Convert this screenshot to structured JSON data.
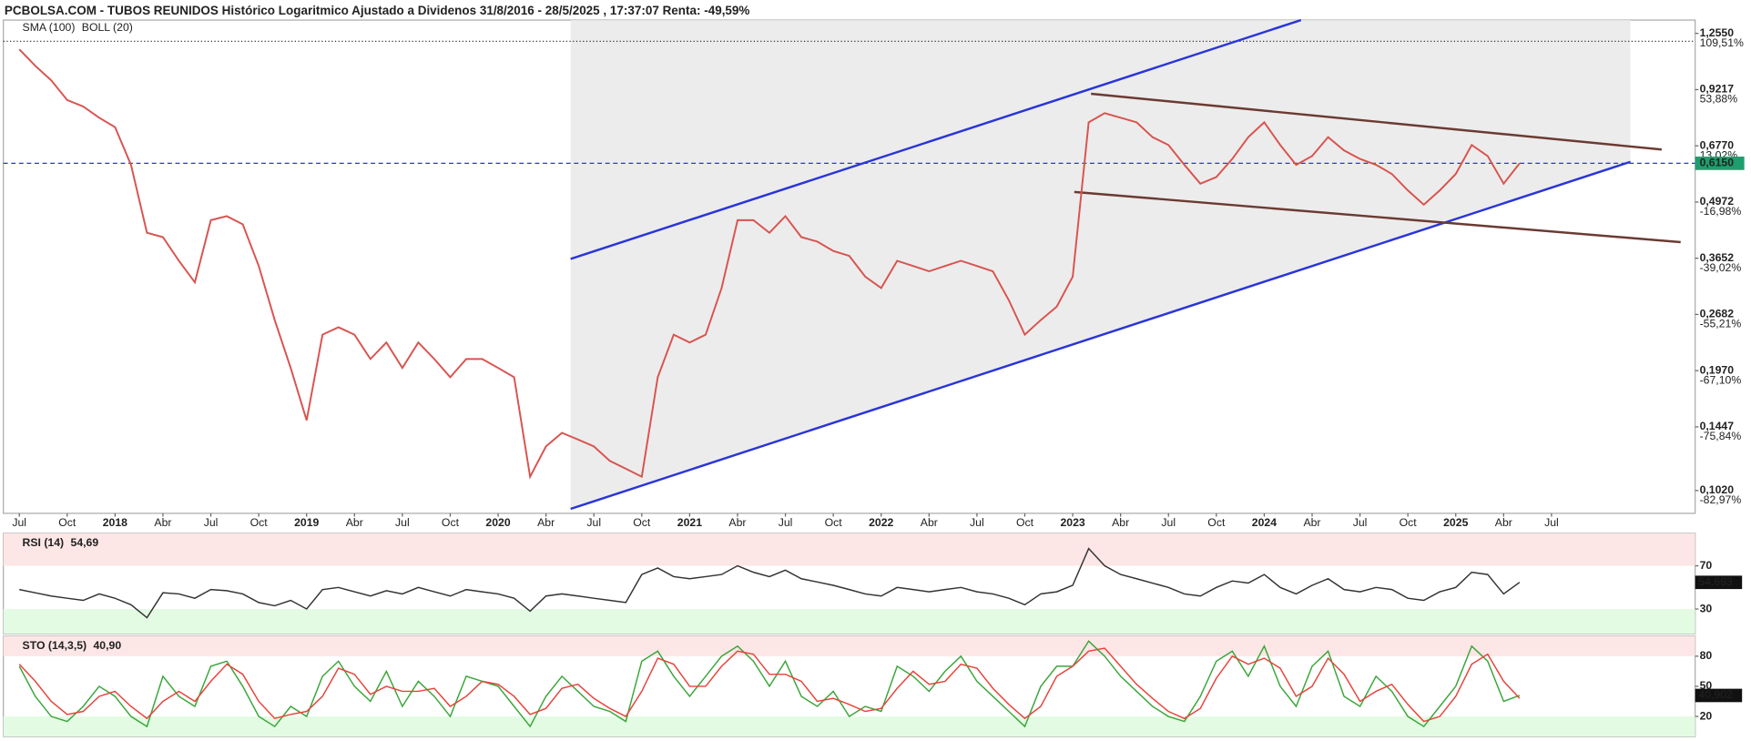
{
  "chart_data": [
    {
      "type": "line",
      "title": "PCBOLSA.COM - TUBOS REUNIDOS Histórico Logaritmico Ajustado a Dividenos 31/8/2016 - 28/5/2025 , 17:37:07 Renta: -49,59%",
      "indicators": [
        {
          "name": "SMA (100)",
          "color": "#9fd0f0"
        },
        {
          "name": "BOLL (20)",
          "color": "#d3e6f3"
        }
      ],
      "log_scale": true,
      "xlim": [
        "2017-06",
        "2026-04"
      ],
      "xticks": [
        {
          "value": "2017-07",
          "label": "Jul"
        },
        {
          "value": "2017-10",
          "label": "Oct"
        },
        {
          "value": "2018-01",
          "label": "2018"
        },
        {
          "value": "2018-04",
          "label": "Abr"
        },
        {
          "value": "2018-07",
          "label": "Jul"
        },
        {
          "value": "2018-10",
          "label": "Oct"
        },
        {
          "value": "2019-01",
          "label": "2019"
        },
        {
          "value": "2019-04",
          "label": "Abr"
        },
        {
          "value": "2019-07",
          "label": "Jul"
        },
        {
          "value": "2019-10",
          "label": "Oct"
        },
        {
          "value": "2020-01",
          "label": "2020"
        },
        {
          "value": "2020-04",
          "label": "Abr"
        },
        {
          "value": "2020-07",
          "label": "Jul"
        },
        {
          "value": "2020-10",
          "label": "Oct"
        },
        {
          "value": "2021-01",
          "label": "2021"
        },
        {
          "value": "2021-04",
          "label": "Abr"
        },
        {
          "value": "2021-07",
          "label": "Jul"
        },
        {
          "value": "2021-10",
          "label": "Oct"
        },
        {
          "value": "2022-01",
          "label": "2022"
        },
        {
          "value": "2022-04",
          "label": "Abr"
        },
        {
          "value": "2022-07",
          "label": "Jul"
        },
        {
          "value": "2022-10",
          "label": "Oct"
        },
        {
          "value": "2023-01",
          "label": "2023"
        },
        {
          "value": "2023-04",
          "label": "Abr"
        },
        {
          "value": "2023-07",
          "label": "Jul"
        },
        {
          "value": "2023-10",
          "label": "Oct"
        },
        {
          "value": "2024-01",
          "label": "2024"
        },
        {
          "value": "2024-04",
          "label": "Abr"
        },
        {
          "value": "2024-07",
          "label": "Jul"
        },
        {
          "value": "2024-10",
          "label": "Oct"
        },
        {
          "value": "2025-01",
          "label": "2025"
        },
        {
          "value": "2025-04",
          "label": "Abr"
        },
        {
          "value": "2025-07",
          "label": "Jul"
        }
      ],
      "ylim": [
        0.09,
        1.35
      ],
      "yticks": [
        {
          "value": 1.255,
          "label": "1,2550"
        },
        {
          "value": 0.9217,
          "label": "0,9217"
        },
        {
          "value": 0.677,
          "label": "0,6770"
        },
        {
          "value": 0.4972,
          "label": "0,4972"
        },
        {
          "value": 0.3652,
          "label": "0,3652"
        },
        {
          "value": 0.2682,
          "label": "0,2682"
        },
        {
          "value": 0.197,
          "label": "0,1970"
        },
        {
          "value": 0.1447,
          "label": "0,1447"
        },
        {
          "value": 0.102,
          "label": "0,1020"
        }
      ],
      "ytick_changes": [
        {
          "value": 109.51,
          "label": "109,51%"
        },
        {
          "value": 53.88,
          "label": "53,88%"
        },
        {
          "value": 13.02,
          "label": "13,02%"
        },
        {
          "value": -16.98,
          "label": "-16,98%"
        },
        {
          "value": -39.02,
          "label": "-39,02%"
        },
        {
          "value": -55.21,
          "label": "-55,21%"
        },
        {
          "value": -67.1,
          "label": "-67,10%"
        },
        {
          "value": -75.84,
          "label": "-75,84%"
        },
        {
          "value": -82.97,
          "label": "-82,97%"
        }
      ],
      "last_price": {
        "value": 0.615,
        "label": "0,6150",
        "color": "#1e9e6e"
      },
      "x": [
        "2017-07",
        "2017-08",
        "2017-09",
        "2017-10",
        "2017-11",
        "2017-12",
        "2018-01",
        "2018-02",
        "2018-03",
        "2018-04",
        "2018-05",
        "2018-06",
        "2018-07",
        "2018-08",
        "2018-09",
        "2018-10",
        "2018-11",
        "2018-12",
        "2019-01",
        "2019-02",
        "2019-03",
        "2019-04",
        "2019-05",
        "2019-06",
        "2019-07",
        "2019-08",
        "2019-09",
        "2019-10",
        "2019-11",
        "2019-12",
        "2020-01",
        "2020-02",
        "2020-03",
        "2020-04",
        "2020-05",
        "2020-06",
        "2020-07",
        "2020-08",
        "2020-09",
        "2020-10",
        "2020-11",
        "2020-12",
        "2021-01",
        "2021-02",
        "2021-03",
        "2021-04",
        "2021-05",
        "2021-06",
        "2021-07",
        "2021-08",
        "2021-09",
        "2021-10",
        "2021-11",
        "2021-12",
        "2022-01",
        "2022-02",
        "2022-03",
        "2022-04",
        "2022-05",
        "2022-06",
        "2022-07",
        "2022-08",
        "2022-09",
        "2022-10",
        "2022-11",
        "2022-12",
        "2023-01",
        "2023-02",
        "2023-03",
        "2023-04",
        "2023-05",
        "2023-06",
        "2023-07",
        "2023-08",
        "2023-09",
        "2023-10",
        "2023-11",
        "2023-12",
        "2024-01",
        "2024-02",
        "2024-03",
        "2024-04",
        "2024-05",
        "2024-06",
        "2024-07",
        "2024-08",
        "2024-09",
        "2024-10",
        "2024-11",
        "2024-12",
        "2025-01",
        "2025-02",
        "2025-03",
        "2025-04",
        "2025-05"
      ],
      "series": [
        {
          "color": "#d9534f",
          "values": [
            1.15,
            1.05,
            0.97,
            0.87,
            0.84,
            0.79,
            0.75,
            0.61,
            0.42,
            0.41,
            0.36,
            0.32,
            0.45,
            0.46,
            0.44,
            0.35,
            0.26,
            0.2,
            0.15,
            0.24,
            0.25,
            0.24,
            0.21,
            0.23,
            0.2,
            0.23,
            0.21,
            0.19,
            0.21,
            0.21,
            0.2,
            0.19,
            0.11,
            0.13,
            0.14,
            0.135,
            0.13,
            0.12,
            0.115,
            0.11,
            0.19,
            0.24,
            0.23,
            0.24,
            0.31,
            0.45,
            0.45,
            0.42,
            0.46,
            0.41,
            0.4,
            0.38,
            0.37,
            0.33,
            0.31,
            0.36,
            0.35,
            0.34,
            0.35,
            0.36,
            0.35,
            0.34,
            0.29,
            0.24,
            0.26,
            0.28,
            0.33,
            0.77,
            0.81,
            0.79,
            0.77,
            0.71,
            0.68,
            0.61,
            0.55,
            0.57,
            0.63,
            0.71,
            0.77,
            0.68,
            0.61,
            0.64,
            0.71,
            0.66,
            0.63,
            0.61,
            0.58,
            0.53,
            0.49,
            0.53,
            0.58,
            0.68,
            0.64,
            0.55,
            0.615
          ]
        }
      ]
    },
    {
      "type": "line",
      "title": "RSI (14)",
      "current": {
        "value": 54.69,
        "label": "54,69"
      },
      "last": {
        "value": 54.693,
        "label": "54,693"
      },
      "ylim": [
        7,
        100
      ],
      "yticks": [
        70,
        30
      ],
      "series": [
        {
          "color": "#333333",
          "values": [
            48,
            45,
            42,
            40,
            38,
            44,
            40,
            34,
            22,
            45,
            44,
            40,
            48,
            47,
            44,
            36,
            33,
            38,
            30,
            48,
            50,
            46,
            42,
            47,
            44,
            50,
            46,
            42,
            48,
            46,
            44,
            40,
            28,
            42,
            44,
            42,
            40,
            38,
            36,
            62,
            68,
            60,
            58,
            60,
            62,
            70,
            64,
            60,
            66,
            58,
            55,
            52,
            48,
            44,
            42,
            50,
            48,
            46,
            48,
            50,
            46,
            44,
            40,
            34,
            44,
            46,
            52,
            86,
            70,
            62,
            58,
            54,
            50,
            44,
            42,
            50,
            56,
            54,
            62,
            50,
            44,
            52,
            58,
            48,
            46,
            50,
            48,
            40,
            38,
            46,
            50,
            64,
            62,
            44,
            54.69
          ]
        }
      ]
    },
    {
      "type": "line",
      "title": "STO (14,3,5)",
      "current": {
        "value": 40.9,
        "label": "40,90"
      },
      "last": {
        "value": 40.902,
        "label": "40,902"
      },
      "ylim": [
        0,
        100
      ],
      "yticks": [
        80,
        50,
        20
      ],
      "series": [
        {
          "color": "#3aa63a",
          "values": [
            70,
            40,
            20,
            15,
            30,
            50,
            40,
            20,
            10,
            60,
            40,
            30,
            70,
            75,
            50,
            20,
            10,
            30,
            20,
            60,
            75,
            50,
            35,
            65,
            30,
            55,
            40,
            20,
            60,
            55,
            50,
            30,
            10,
            40,
            60,
            45,
            30,
            25,
            15,
            75,
            85,
            60,
            40,
            60,
            80,
            90,
            75,
            50,
            75,
            40,
            30,
            45,
            20,
            30,
            25,
            70,
            60,
            45,
            65,
            80,
            55,
            40,
            25,
            10,
            50,
            70,
            70,
            95,
            80,
            60,
            45,
            30,
            20,
            15,
            40,
            75,
            85,
            60,
            90,
            50,
            30,
            70,
            85,
            40,
            30,
            60,
            45,
            20,
            10,
            30,
            50,
            90,
            75,
            35,
            40.9
          ]
        },
        {
          "color": "#e8433c",
          "values": [
            72,
            55,
            35,
            22,
            25,
            40,
            45,
            30,
            18,
            35,
            45,
            35,
            55,
            72,
            62,
            35,
            18,
            22,
            25,
            40,
            68,
            62,
            42,
            50,
            45,
            45,
            48,
            30,
            40,
            55,
            52,
            40,
            22,
            28,
            48,
            52,
            38,
            28,
            20,
            45,
            78,
            72,
            50,
            50,
            70,
            85,
            82,
            62,
            62,
            55,
            35,
            38,
            32,
            25,
            28,
            48,
            65,
            52,
            55,
            72,
            68,
            48,
            32,
            18,
            30,
            60,
            70,
            85,
            88,
            70,
            52,
            38,
            25,
            18,
            28,
            58,
            80,
            72,
            78,
            68,
            40,
            50,
            78,
            62,
            35,
            45,
            52,
            32,
            15,
            20,
            40,
            72,
            82,
            55,
            38
          ]
        }
      ]
    }
  ]
}
